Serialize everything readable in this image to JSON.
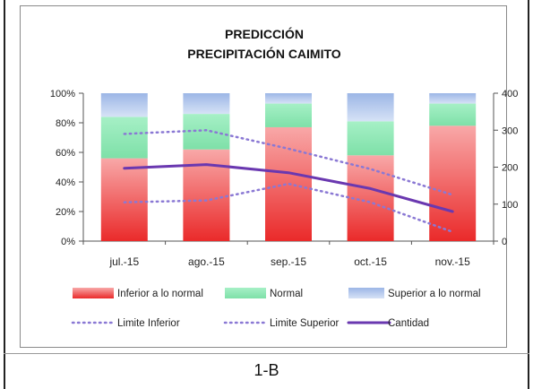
{
  "caption": "1-B",
  "chart_data": {
    "type": "bar",
    "stacked": true,
    "title_lines": [
      "PREDICCIÓN",
      "PRECIPITACIÓN     CAIMITO"
    ],
    "categories": [
      "jul.-15",
      "ago.-15",
      "sep.-15",
      "oct.-15",
      "nov.-15"
    ],
    "y_left": {
      "min": 0,
      "max": 100,
      "ticks": [
        0,
        20,
        40,
        60,
        80,
        100
      ],
      "tick_labels": [
        "0%",
        "20%",
        "40%",
        "60%",
        "80%",
        "100%"
      ]
    },
    "y_right": {
      "min": 0,
      "max": 400,
      "ticks": [
        0,
        100,
        200,
        300,
        400
      ],
      "tick_labels": [
        "0",
        "100",
        "200",
        "300",
        "400"
      ]
    },
    "bar_series": [
      {
        "name": "Inferior a lo normal",
        "color": "#f04848",
        "values": [
          56,
          62,
          77,
          58,
          78
        ]
      },
      {
        "name": "Normal",
        "color": "#8ee8b4",
        "values": [
          28,
          24,
          16,
          23,
          15
        ]
      },
      {
        "name": "Superior a lo normal",
        "color": "#b4c8ea",
        "values": [
          16,
          14,
          7,
          19,
          7
        ]
      }
    ],
    "line_series": [
      {
        "name": "Limite Inferior",
        "color": "#8a78d4",
        "dashed": true,
        "axis": "right",
        "values": [
          105,
          110,
          155,
          105,
          25
        ]
      },
      {
        "name": "Limite Superior",
        "color": "#8a78d4",
        "dashed": true,
        "axis": "right",
        "values": [
          290,
          300,
          250,
          195,
          125
        ]
      },
      {
        "name": "Cantidad",
        "color": "#6a38b0",
        "dashed": false,
        "axis": "right",
        "values": [
          197,
          207,
          185,
          142,
          80
        ]
      }
    ],
    "legend": [
      {
        "label": "Inferior a lo normal",
        "kind": "bar",
        "series": 0
      },
      {
        "label": "Normal",
        "kind": "bar",
        "series": 1
      },
      {
        "label": "Superior a lo normal",
        "kind": "bar",
        "series": 2
      },
      {
        "label": "Limite Inferior",
        "kind": "line",
        "series": 0
      },
      {
        "label": "Limite Superior",
        "kind": "line",
        "series": 1
      },
      {
        "label": "Cantidad",
        "kind": "line",
        "series": 2
      }
    ],
    "legend_placement": "bottom",
    "grid": false
  }
}
